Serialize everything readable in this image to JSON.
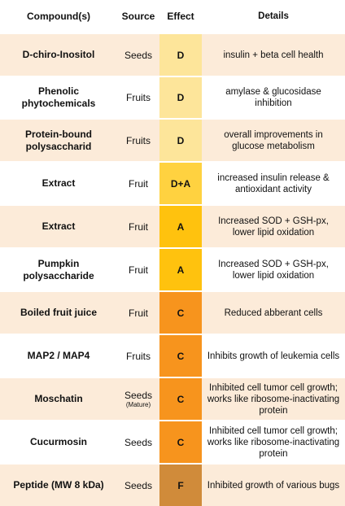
{
  "header": {
    "compound": "Compound(s)",
    "source": "Source",
    "effect": "Effect",
    "details": "Details"
  },
  "rows": [
    {
      "compound": "D-chiro-Inositol",
      "source": "Seeds",
      "source_note": "",
      "effect": "D",
      "details": "insulin + beta cell health",
      "effect_color": "#fde59a"
    },
    {
      "compound": "Phenolic phytochemicals",
      "source": "Fruits",
      "source_note": "",
      "effect": "D",
      "details": "amylase & glucosidase inhibition",
      "effect_color": "#fde59a"
    },
    {
      "compound": "Protein-bound polysaccharid",
      "source": "Fruits",
      "source_note": "",
      "effect": "D",
      "details": "overall improvements in glucose metabolism",
      "effect_color": "#fde59a"
    },
    {
      "compound": "Extract",
      "source": "Fruit",
      "source_note": "",
      "effect": "D+A",
      "details": "increased insulin release & antioxidant activity",
      "effect_color": "#ffd240"
    },
    {
      "compound": "Extract",
      "source": "Fruit",
      "source_note": "",
      "effect": "A",
      "details": "Increased SOD + GSH-px, lower lipid oxidation",
      "effect_color": "#ffc20e"
    },
    {
      "compound": "Pumpkin polysaccharide",
      "source": "Fruit",
      "source_note": "",
      "effect": "A",
      "details": "Increased SOD + GSH-px, lower lipid oxidation",
      "effect_color": "#ffc20e"
    },
    {
      "compound": "Boiled fruit juice",
      "source": "Fruit",
      "source_note": "",
      "effect": "C",
      "details": "Reduced abberant cells",
      "effect_color": "#f7941d"
    },
    {
      "compound": "MAP2 / MAP4",
      "source": "Fruits",
      "source_note": "",
      "effect": "C",
      "details": "Inhibits growth of leukemia cells",
      "effect_color": "#f7941d"
    },
    {
      "compound": "Moschatin",
      "source": "Seeds",
      "source_note": "(Mature)",
      "effect": "C",
      "details": "Inhibited cell tumor cell growth; works like ribosome-inactivating protein",
      "effect_color": "#f7941d"
    },
    {
      "compound": "Cucurmosin",
      "source": "Seeds",
      "source_note": "",
      "effect": "C",
      "details": "Inhibited cell tumor cell growth; works like ribosome-inactivating protein",
      "effect_color": "#f7941d"
    },
    {
      "compound": "Peptide (MW 8 kDa)",
      "source": "Seeds",
      "source_note": "",
      "effect": "F",
      "details": "Inhibited growth of various bugs",
      "effect_color": "#d08b3a"
    }
  ]
}
